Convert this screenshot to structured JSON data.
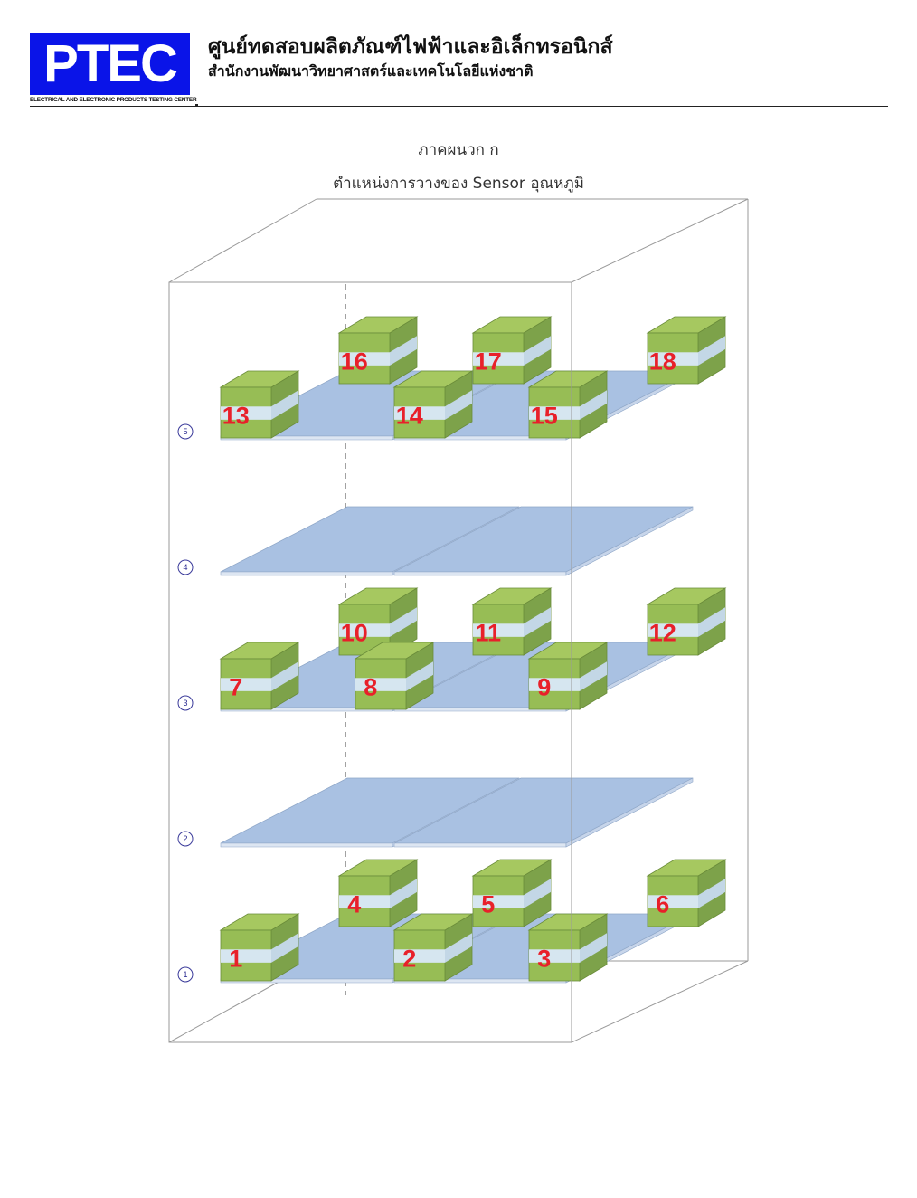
{
  "header": {
    "logo_text": "PTEC",
    "logo_subtext": "ELECTRICAL AND ELECTRONIC PRODUCTS TESTING CENTER",
    "title": "ศูนย์ทดสอบผลิตภัณฑ์ไฟฟ้าและอิเล็กทรอนิกส์",
    "subtitle": "สำนักงานพัฒนาวิทยาศาสตร์และเทคโนโลยีแห่งชาติ",
    "logo_color": "#0a14e8"
  },
  "document": {
    "appendix": "ภาคผนวก ก",
    "caption": "ตำแหน่งการวางของ Sensor อุณหภูมิ"
  },
  "diagram": {
    "colors": {
      "shelf": "#a9c1e2",
      "sensor_top": "#a6c860",
      "sensor_band": "#d6e6f0",
      "sensor_number": "#e8202a"
    },
    "levels": [
      {
        "label": "1",
        "sensors": [
          "1",
          "2",
          "3",
          "4",
          "5",
          "6"
        ]
      },
      {
        "label": "2",
        "sensors": []
      },
      {
        "label": "3",
        "sensors": [
          "7",
          "8",
          "9",
          "10",
          "11",
          "12"
        ]
      },
      {
        "label": "4",
        "sensors": []
      },
      {
        "label": "5",
        "sensors": [
          "13",
          "14",
          "15",
          "16",
          "17",
          "18"
        ]
      }
    ]
  }
}
